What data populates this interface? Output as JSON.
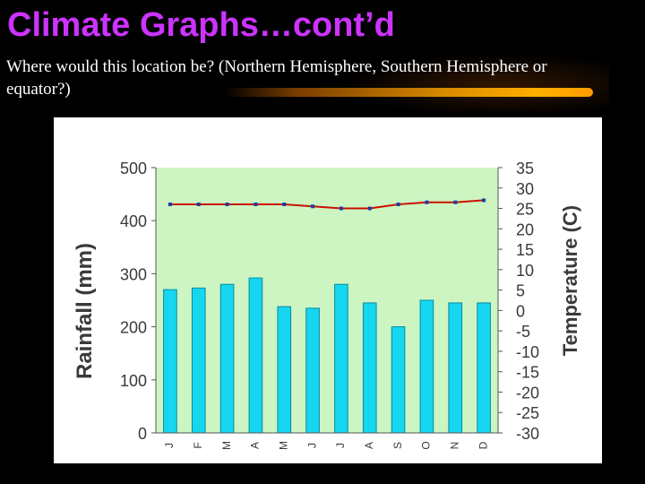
{
  "slide": {
    "title": "Climate Graphs…cont’d",
    "question": "Where would this location be? (Northern Hemisphere, Southern Hemisphere or equator?)"
  },
  "colors": {
    "title": "#cc33ff",
    "plot_background": "#ccf5c2",
    "bars": "#16d6f0",
    "temperature_line": "#cc1100",
    "temperature_points": "#1a3fa0",
    "axis_text": "#3a3a3a"
  },
  "chart_data": {
    "type": "bar",
    "categories": [
      "J",
      "F",
      "M",
      "A",
      "M",
      "J",
      "J",
      "A",
      "S",
      "O",
      "N",
      "D"
    ],
    "series": [
      {
        "type": "bar",
        "axis": "left",
        "values": [
          270,
          273,
          280,
          292,
          238,
          235,
          280,
          245,
          200,
          250,
          245,
          245
        ]
      },
      {
        "type": "line",
        "axis": "right",
        "values": [
          26,
          26,
          26,
          26,
          26,
          25.5,
          25,
          25,
          26,
          26.5,
          26.5,
          27
        ]
      }
    ],
    "ylabel": "Rainfall (mm)",
    "ylim": [
      0,
      500
    ],
    "yticks": [
      "0",
      "100",
      "200",
      "300",
      "400",
      "500"
    ],
    "y2label": "Temperature (C)",
    "y2lim": [
      -30,
      35
    ],
    "y2ticks": [
      "-30",
      "-25",
      "-20",
      "-15",
      "-10",
      "-5",
      "0",
      "5",
      "10",
      "15",
      "20",
      "25",
      "30",
      "35"
    ],
    "grid": false,
    "legend": "none"
  }
}
